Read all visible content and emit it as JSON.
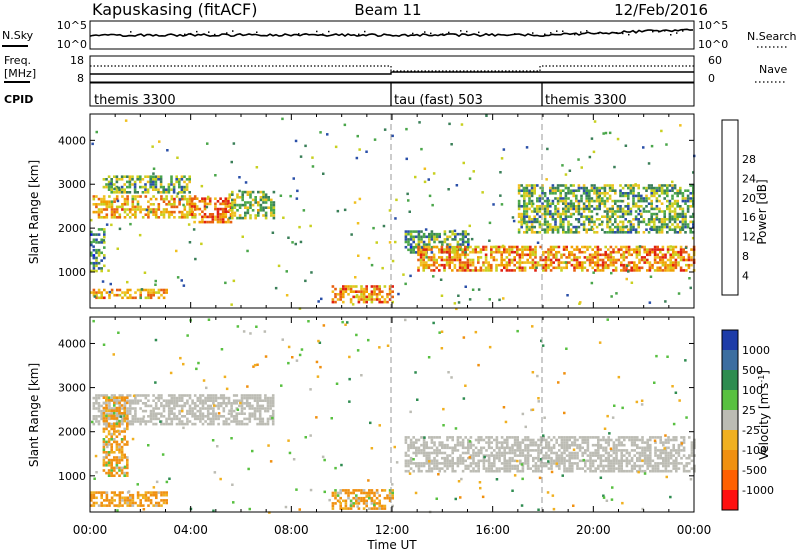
{
  "header": {
    "station": "Kapuskasing (fitACF)",
    "beam": "Beam 11",
    "date": "12/Feb/2016"
  },
  "noise_panel": {
    "left_label": "N.Sky",
    "left_ticks": [
      "10^5",
      "10^0"
    ],
    "right_ticks": [
      "10^5",
      "10^0"
    ],
    "right_label": "N.Search"
  },
  "freq_panel": {
    "left_label": "Freq.",
    "left_unit": "[MHz]",
    "left_ticks": [
      "18",
      "8"
    ],
    "right_ticks": [
      "60",
      "0"
    ],
    "right_label": "Nave"
  },
  "cpid_panel": {
    "label": "CPID",
    "programs": [
      {
        "name": "themis 3300",
        "start_hour": 0
      },
      {
        "name": "tau (fast) 503",
        "start_hour": 12
      },
      {
        "name": "themis 3300",
        "start_hour": 18
      }
    ]
  },
  "time_axis": {
    "title": "Time UT",
    "ticks": [
      "00:00",
      "04:00",
      "08:00",
      "12:00",
      "16:00",
      "20:00",
      "00:00"
    ]
  },
  "range_axis": {
    "title": "Slant Range [km]",
    "ticks": [
      "1000",
      "2000",
      "3000",
      "4000"
    ]
  },
  "power_colorbar": {
    "title": "Power [dB]",
    "ticks": [
      "4",
      "8",
      "12",
      "16",
      "20",
      "24",
      "28"
    ],
    "colors": [
      "#0a1ee6",
      "#2a4fa8",
      "#3a7f58",
      "#4aa64a",
      "#c8d020",
      "#f0c020",
      "#f0a000",
      "#e86010",
      "#e02010"
    ]
  },
  "velocity_colorbar": {
    "title": "Velocity [m s",
    "title_sup": "-1",
    "title_end": "]",
    "ticks": [
      "1000",
      "500",
      "100",
      "25",
      "-25",
      "-100",
      "-500",
      "-1000"
    ],
    "colors": [
      "#1e3ca8",
      "#3c6ea0",
      "#2e8c50",
      "#58c040",
      "#bcbcb4",
      "#f0b020",
      "#f09010",
      "#ff6000",
      "#ff1010"
    ]
  },
  "chart_data": {
    "type": "heatmap",
    "title": "Kapuskasing (fitACF) Beam 11 12/Feb/2016",
    "xlabel": "Time UT",
    "ylabel": "Slant Range [km]",
    "xlim": [
      0,
      24
    ],
    "ylim": [
      180,
      4600
    ],
    "panels": [
      {
        "name": "Power",
        "unit": "dB",
        "color_range": [
          0,
          30
        ],
        "echo_regions": [
          {
            "t": [
              0.1,
              4.2
            ],
            "r": [
              2250,
              2750
            ],
            "value": 20
          },
          {
            "t": [
              0.5,
              4.0
            ],
            "r": [
              2800,
              3200
            ],
            "value": 12
          },
          {
            "t": [
              4.0,
              5.6
            ],
            "r": [
              2150,
              2700
            ],
            "value": 24
          },
          {
            "t": [
              5.5,
              7.3
            ],
            "r": [
              2200,
              2850
            ],
            "value": 14
          },
          {
            "t": [
              0.0,
              0.6
            ],
            "r": [
              1000,
              2000
            ],
            "value": 10
          },
          {
            "t": [
              0.0,
              3.0
            ],
            "r": [
              420,
              620
            ],
            "value": 20
          },
          {
            "t": [
              9.6,
              12.0
            ],
            "r": [
              300,
              700
            ],
            "value": 22
          },
          {
            "t": [
              12.5,
              15.0
            ],
            "r": [
              1450,
              1950
            ],
            "value": 10
          },
          {
            "t": [
              13.0,
              24.0
            ],
            "r": [
              1050,
              1600
            ],
            "value": 22
          },
          {
            "t": [
              17.0,
              24.0
            ],
            "r": [
              1900,
              3000
            ],
            "value": 12
          }
        ]
      },
      {
        "name": "Velocity",
        "unit": "m s-1",
        "color_range": [
          -1000,
          1000
        ],
        "echo_regions": [
          {
            "t": [
              0.1,
              7.3
            ],
            "r": [
              2200,
              2850
            ],
            "value": 0
          },
          {
            "t": [
              0.0,
              3.0
            ],
            "r": [
              300,
              650
            ],
            "value": -200
          },
          {
            "t": [
              9.6,
              12.0
            ],
            "r": [
              250,
              700
            ],
            "value": -150
          },
          {
            "t": [
              12.5,
              24.0
            ],
            "r": [
              1100,
              1900
            ],
            "value": 0
          },
          {
            "t": [
              0.5,
              1.5
            ],
            "r": [
              1000,
              2800
            ],
            "value": -150
          }
        ]
      }
    ],
    "program_boundaries_hour": [
      12,
      18
    ]
  }
}
